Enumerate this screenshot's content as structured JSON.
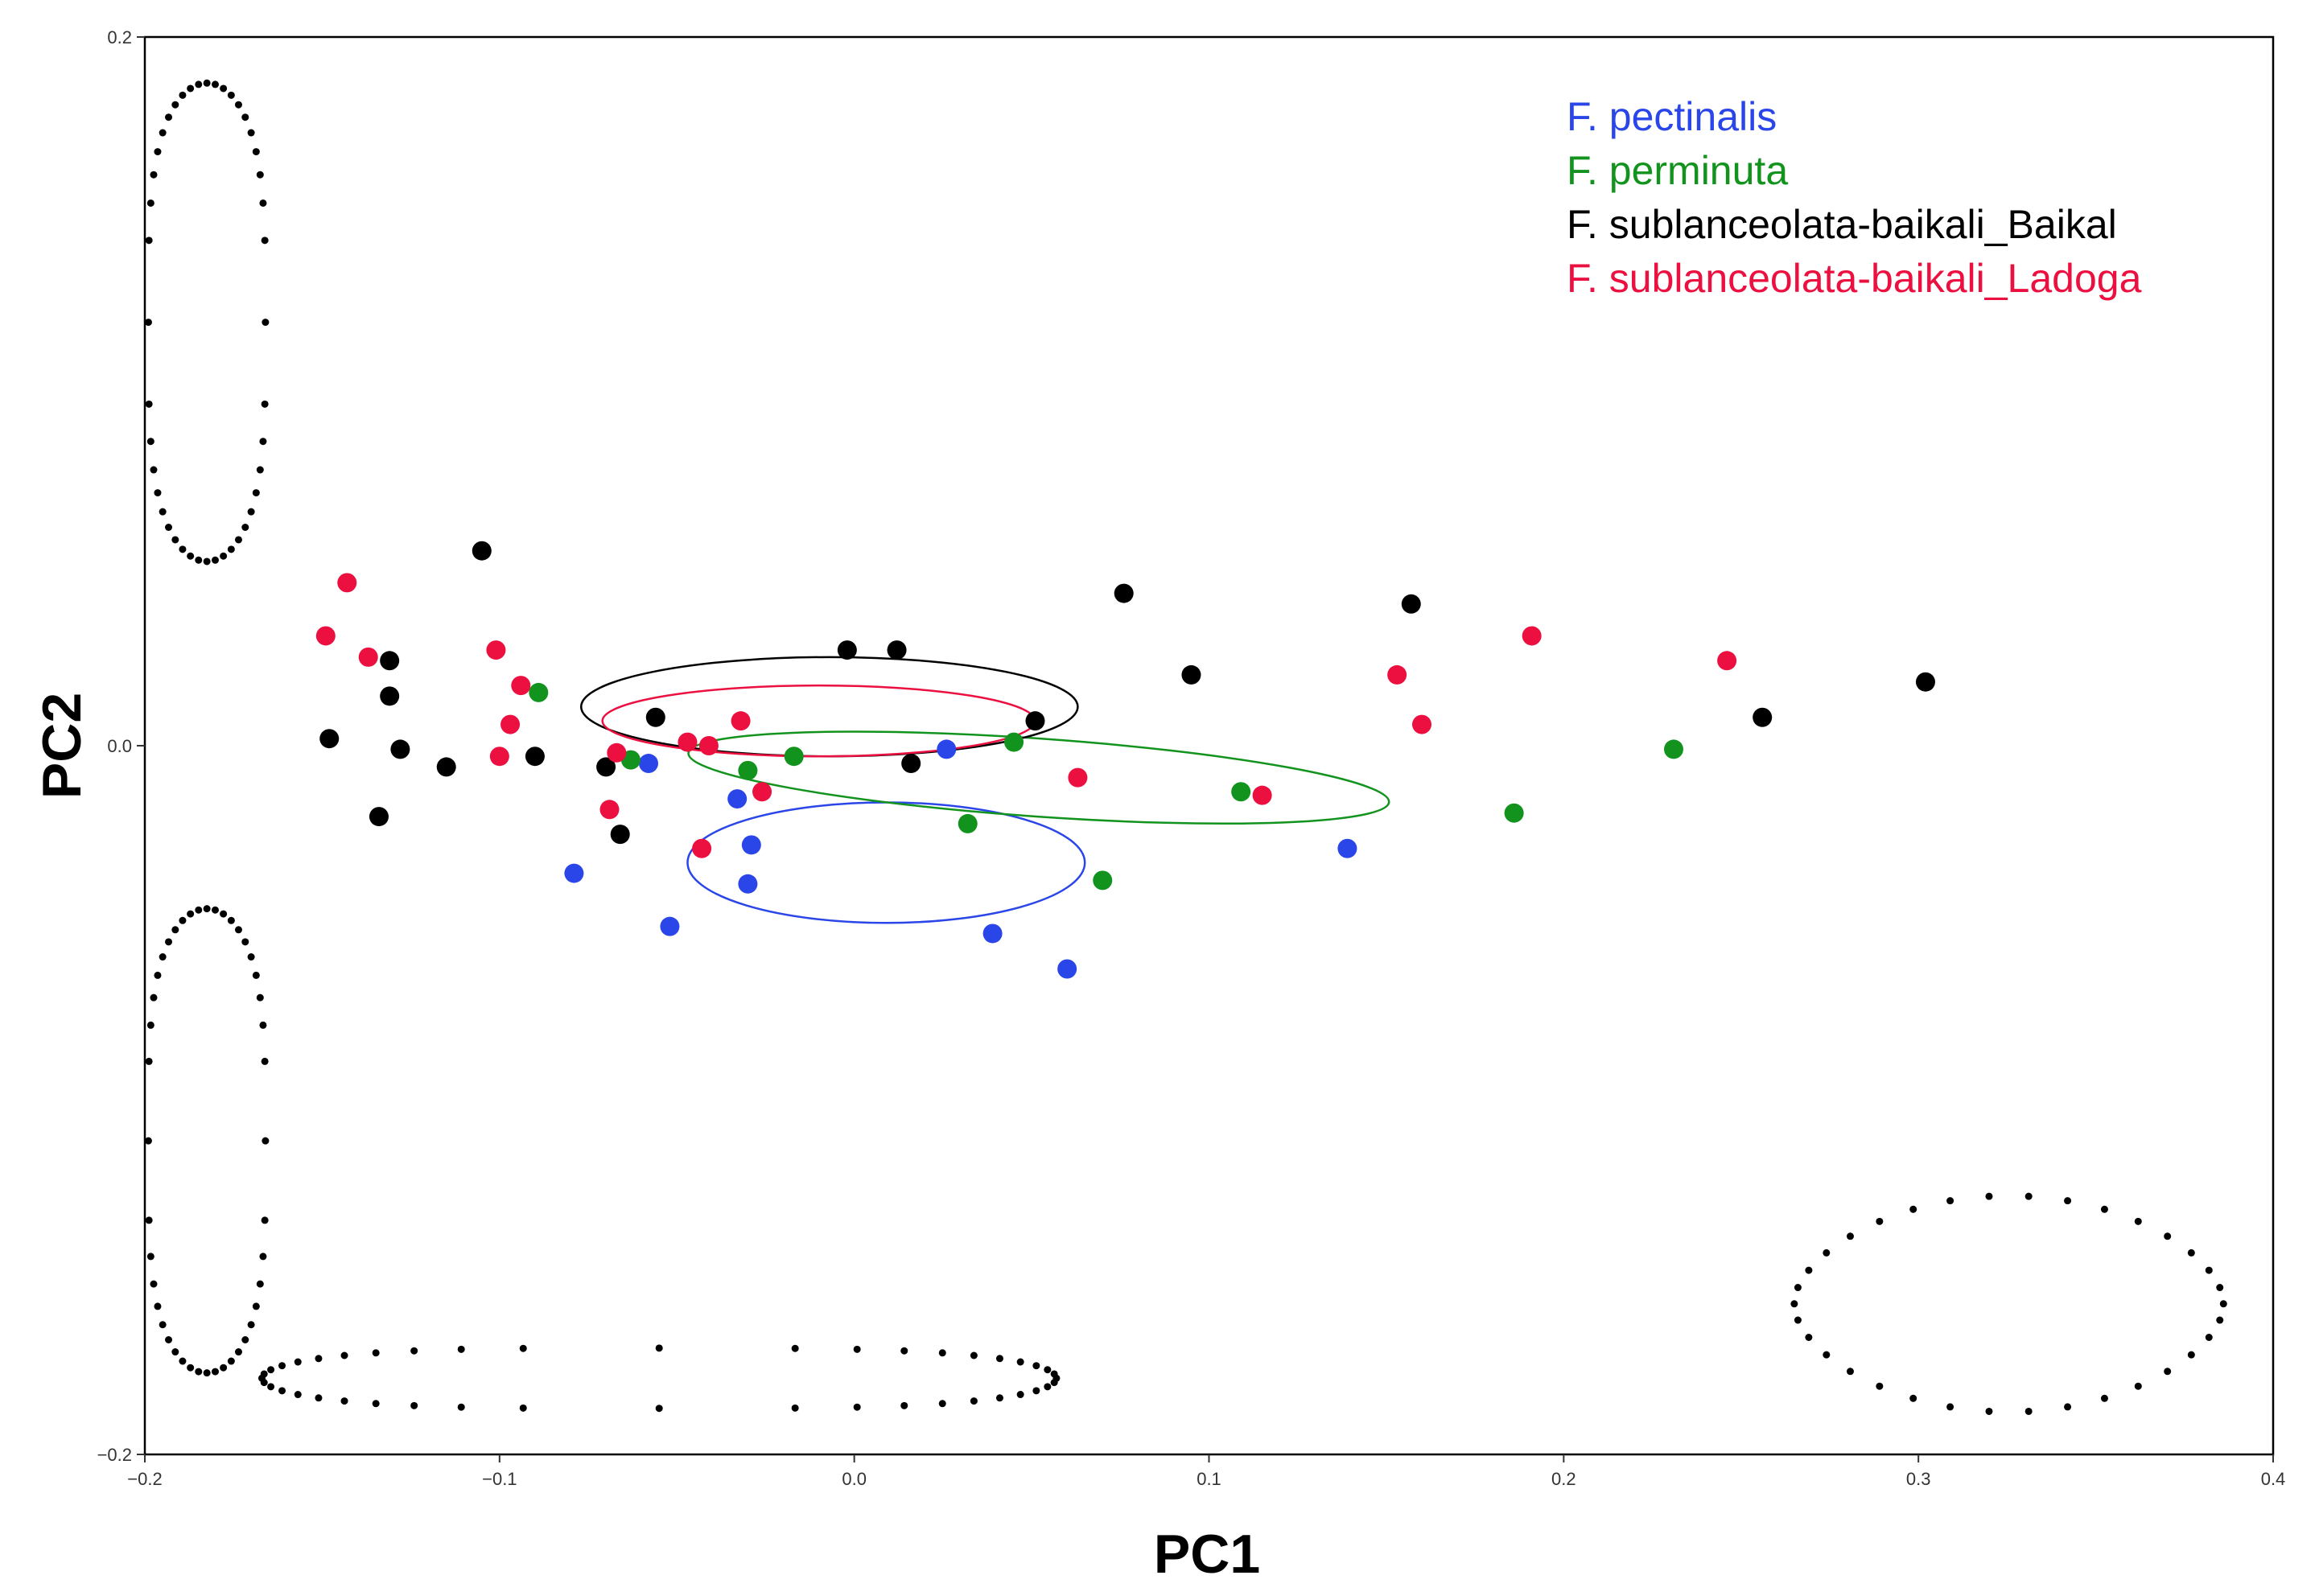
{
  "chart_data": {
    "type": "scatter",
    "title": "",
    "xlabel": "PC1",
    "ylabel": "PC2",
    "xlim": [
      -0.2,
      0.4
    ],
    "ylim": [
      -0.2,
      0.2
    ],
    "xticks": [
      -0.2,
      -0.1,
      0.0,
      0.1,
      0.2,
      0.3,
      0.4
    ],
    "xtick_labels": [
      "−0.2",
      "−0.1",
      "0.0",
      "0.1",
      "0.2",
      "0.3",
      "0.4"
    ],
    "yticks": [
      -0.2,
      0.0,
      0.2
    ],
    "ytick_labels": [
      "−0.2",
      "0.0",
      "0.2"
    ],
    "grid": false,
    "legend_position": "top-right",
    "series": [
      {
        "name": "F. pectinalis",
        "label": "F. pectinalis",
        "color": "#2b46e8",
        "points": [
          [
            -0.079,
            -0.036
          ],
          [
            -0.058,
            -0.005
          ],
          [
            -0.052,
            -0.051
          ],
          [
            -0.033,
            -0.015
          ],
          [
            -0.03,
            -0.039
          ],
          [
            -0.029,
            -0.028
          ],
          [
            0.026,
            -0.001
          ],
          [
            0.039,
            -0.053
          ],
          [
            0.06,
            -0.063
          ],
          [
            0.139,
            -0.029
          ]
        ],
        "ellipse": {
          "cx": 0.009,
          "cy": -0.033,
          "rx": 0.056,
          "ry": 0.017,
          "angle": 0
        }
      },
      {
        "name": "F. perminuta",
        "label": "F. perminuta",
        "color": "#12931d",
        "points": [
          [
            -0.089,
            0.015
          ],
          [
            -0.063,
            -0.004
          ],
          [
            -0.03,
            -0.007
          ],
          [
            -0.017,
            -0.003
          ],
          [
            0.032,
            -0.022
          ],
          [
            0.045,
            0.001
          ],
          [
            0.07,
            -0.038
          ],
          [
            0.109,
            -0.013
          ],
          [
            0.186,
            -0.019
          ],
          [
            0.231,
            -0.001
          ]
        ],
        "ellipse": {
          "cx": 0.052,
          "cy": -0.009,
          "rx": 0.099,
          "ry": 0.011,
          "angle": -4
        }
      },
      {
        "name": "F. sublanceolata-baikali_Baikal",
        "label": "F. sublanceolata-baikali_Baikal",
        "color": "#000000",
        "points": [
          [
            -0.148,
            0.002
          ],
          [
            -0.134,
            -0.02
          ],
          [
            -0.131,
            0.024
          ],
          [
            -0.131,
            0.014
          ],
          [
            -0.128,
            -0.001
          ],
          [
            -0.115,
            -0.006
          ],
          [
            -0.105,
            0.055
          ],
          [
            -0.09,
            -0.003
          ],
          [
            -0.07,
            -0.006
          ],
          [
            -0.066,
            -0.025
          ],
          [
            -0.056,
            0.008
          ],
          [
            -0.002,
            0.027
          ],
          [
            0.012,
            0.027
          ],
          [
            0.016,
            -0.005
          ],
          [
            0.051,
            0.007
          ],
          [
            0.076,
            0.043
          ],
          [
            0.095,
            0.02
          ],
          [
            0.157,
            0.04
          ],
          [
            0.256,
            0.008
          ],
          [
            0.302,
            0.018
          ]
        ],
        "ellipse": {
          "cx": -0.007,
          "cy": 0.011,
          "rx": 0.07,
          "ry": 0.014,
          "angle": 0
        }
      },
      {
        "name": "F. sublanceolata-baikali_Ladoga",
        "label": "F. sublanceolata-baikali_Ladoga",
        "color": "#eb1040",
        "points": [
          [
            -0.149,
            0.031
          ],
          [
            -0.143,
            0.046
          ],
          [
            -0.137,
            0.025
          ],
          [
            -0.101,
            0.027
          ],
          [
            -0.1,
            -0.003
          ],
          [
            -0.097,
            0.006
          ],
          [
            -0.094,
            0.017
          ],
          [
            -0.069,
            -0.018
          ],
          [
            -0.067,
            -0.002
          ],
          [
            -0.047,
            0.001
          ],
          [
            -0.043,
            -0.029
          ],
          [
            -0.041,
            0.0
          ],
          [
            -0.032,
            0.007
          ],
          [
            -0.026,
            -0.013
          ],
          [
            0.063,
            -0.009
          ],
          [
            0.115,
            -0.014
          ],
          [
            0.153,
            0.02
          ],
          [
            0.16,
            0.006
          ],
          [
            0.191,
            0.031
          ],
          [
            0.246,
            0.024
          ]
        ],
        "ellipse": {
          "cx": -0.01,
          "cy": 0.007,
          "rx": 0.061,
          "ry": 0.01,
          "angle": 0
        }
      }
    ],
    "outline_shapes": [
      {
        "name": "outline-top-left",
        "shape": "elongated-valve",
        "x": [
          -0.199,
          -0.166
        ],
        "y": [
          0.052,
          0.187
        ]
      },
      {
        "name": "outline-bottom-left",
        "shape": "elongated-valve",
        "x": [
          -0.199,
          -0.166
        ],
        "y": [
          -0.177,
          -0.046
        ]
      },
      {
        "name": "outline-bottom-middle",
        "shape": "elongated-valve",
        "x": [
          -0.167,
          0.057
        ],
        "y": [
          -0.187,
          -0.17
        ]
      },
      {
        "name": "outline-bottom-right",
        "shape": "lanceolate",
        "x": [
          0.265,
          0.386
        ],
        "y": [
          -0.188,
          -0.127
        ]
      }
    ]
  }
}
